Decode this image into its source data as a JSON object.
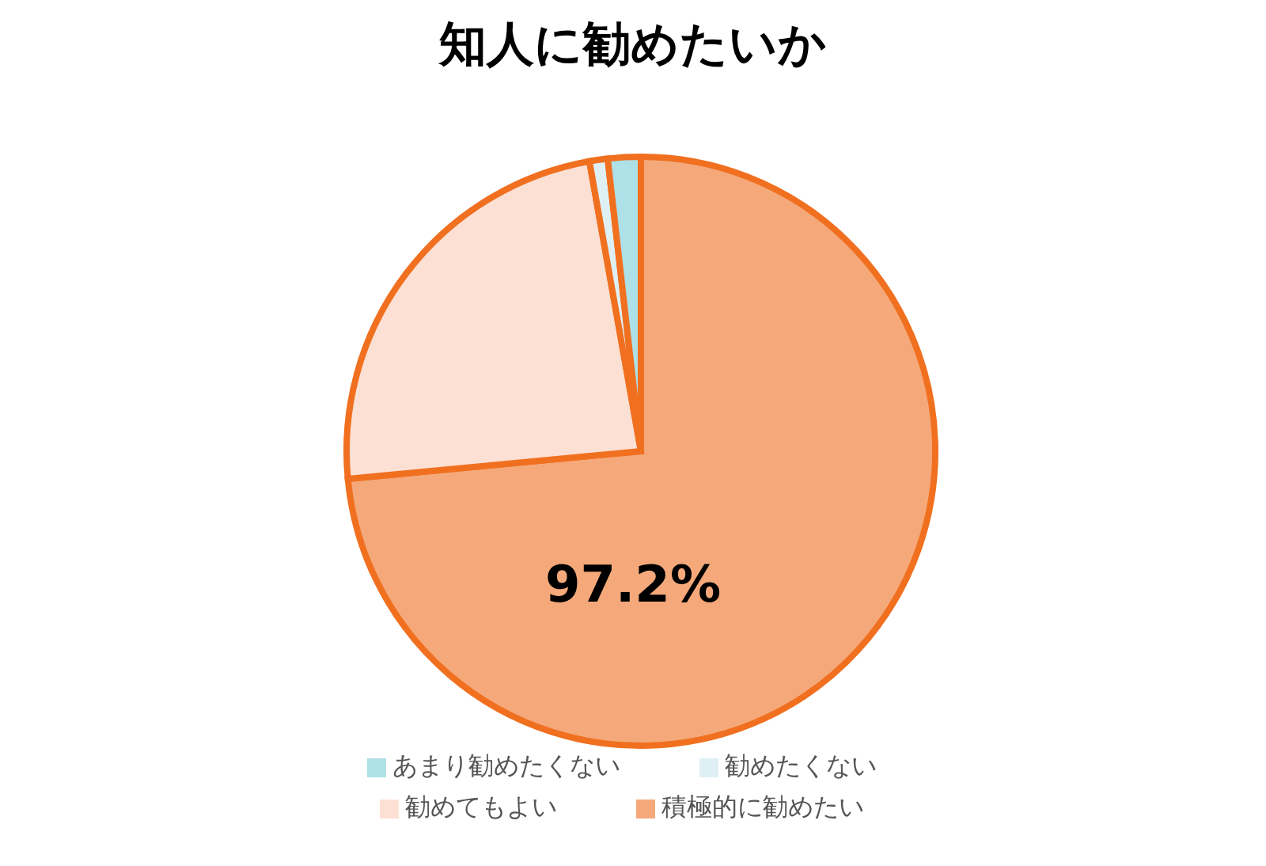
{
  "chart_data": {
    "type": "pie",
    "title": "知人に勧めたいか",
    "categories": [
      "積極的に勧めたい",
      "勧めてもよい",
      "勧めたくない",
      "あまり勧めたくない"
    ],
    "values": [
      73.5,
      23.7,
      1.0,
      1.8
    ],
    "colors": [
      "#f5a97a",
      "#fde0d4",
      "#dff0f5",
      "#aee0e8"
    ],
    "annotations": [
      "97.2%"
    ],
    "legend": "bottom"
  }
}
